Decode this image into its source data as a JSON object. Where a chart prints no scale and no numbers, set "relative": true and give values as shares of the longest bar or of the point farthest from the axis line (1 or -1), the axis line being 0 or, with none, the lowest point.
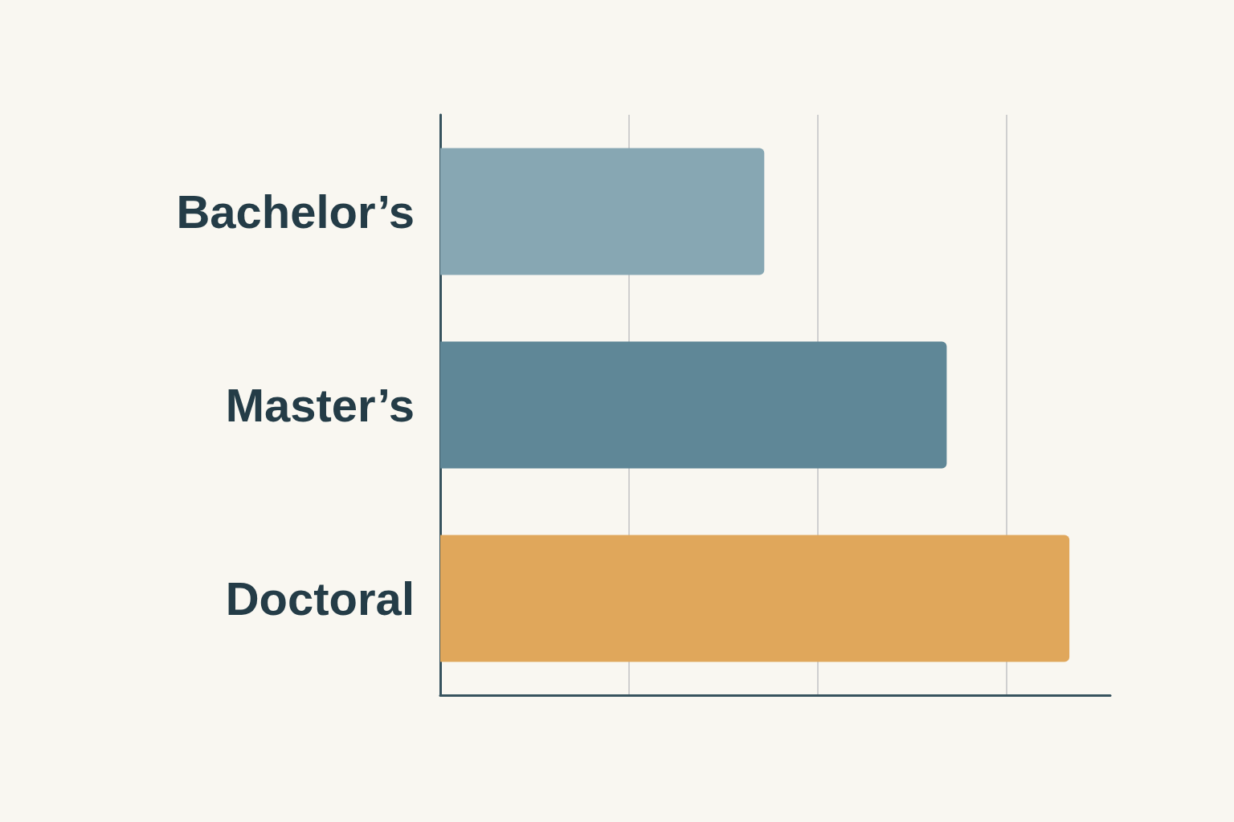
{
  "chart_data": {
    "type": "bar",
    "orientation": "horizontal",
    "relative": true,
    "categories": [
      "Bachelor’s",
      "Master’s",
      "Doctoral"
    ],
    "values": [
      0.515,
      0.805,
      1
    ],
    "colors": [
      "#87a7b3",
      "#5f8797",
      "#e0a75b"
    ],
    "grid": "x"
  }
}
